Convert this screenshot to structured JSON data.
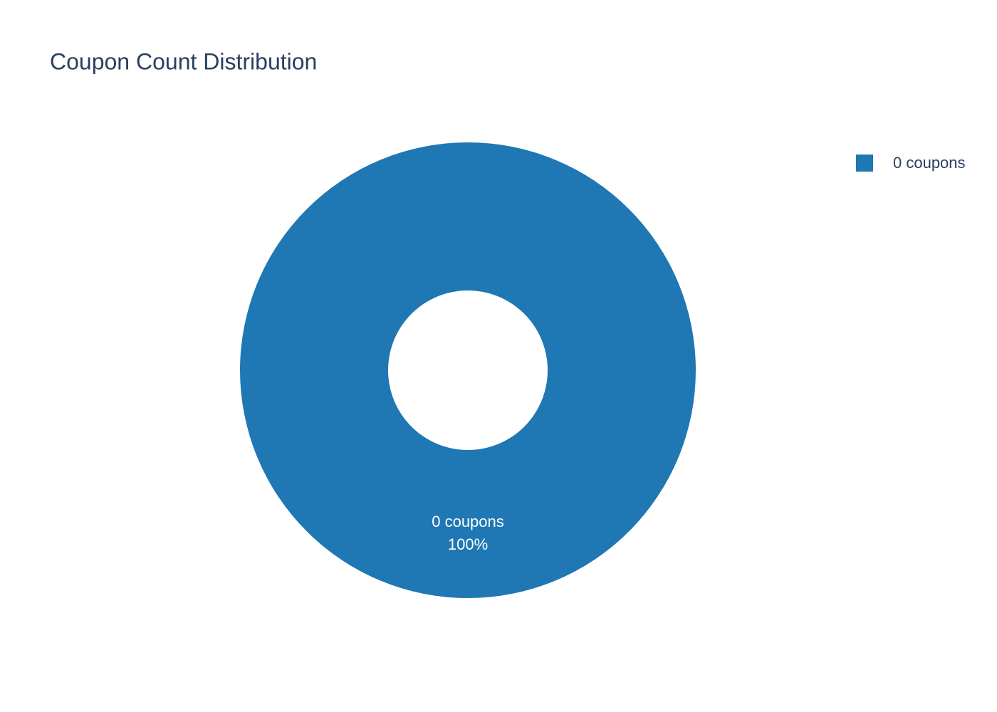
{
  "chart_data": {
    "type": "donut",
    "title": "Coupon Count Distribution",
    "categories": [
      "0 coupons"
    ],
    "values": [
      100
    ],
    "value_labels": [
      "100%"
    ],
    "colors": [
      "#1f77b4"
    ],
    "legend": "top-right"
  }
}
